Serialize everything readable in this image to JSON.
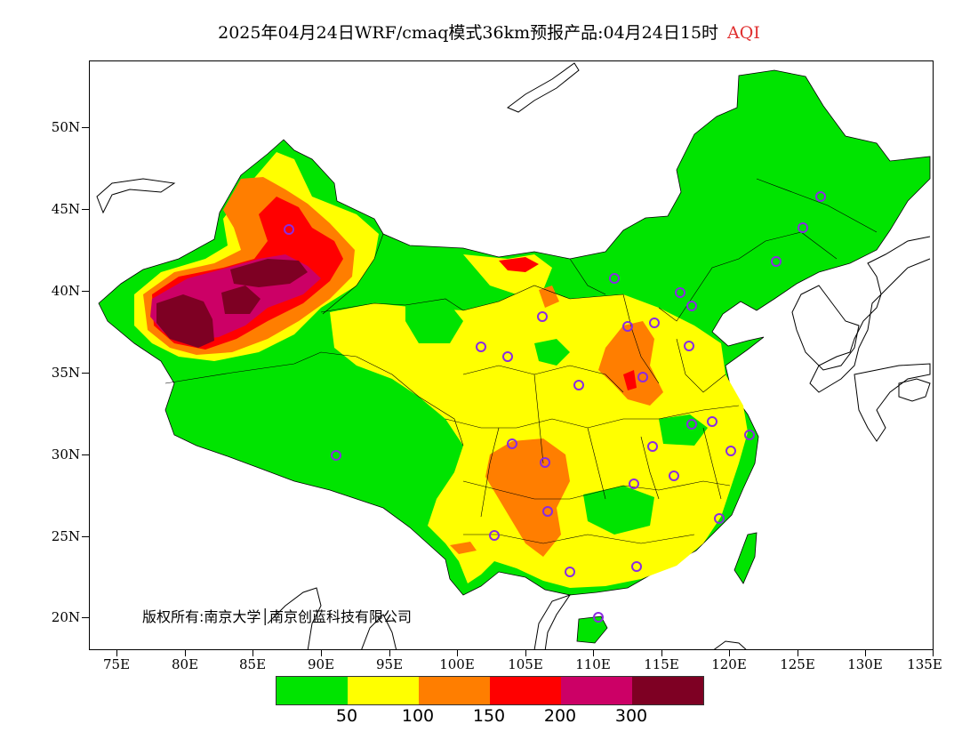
{
  "title": "2025年04月24日WRF/cmaq模式36km预报产品:04月24日15时",
  "product": "AQI",
  "copyright": "版权所有:南京大学│南京创蓝科技有限公司",
  "colors": {
    "good": "#00e400",
    "moderate": "#ffff00",
    "unhealthy_sensitive": "#ff7e00",
    "unhealthy": "#ff0000",
    "very_unhealthy": "#cc0066",
    "hazardous": "#7e0023",
    "station": "#8a2be2"
  },
  "lat_labels": [
    "50N",
    "45N",
    "40N",
    "35N",
    "30N",
    "25N",
    "20N"
  ],
  "lon_labels": [
    "75E",
    "80E",
    "85E",
    "90E",
    "95E",
    "100E",
    "105E",
    "110E",
    "115E",
    "120E",
    "125E",
    "130E",
    "135E"
  ],
  "legend": {
    "breaks": [
      "50",
      "100",
      "150",
      "200",
      "300"
    ],
    "colors": [
      "#00e400",
      "#ffff00",
      "#ff7e00",
      "#ff0000",
      "#cc0066",
      "#7e0023"
    ]
  }
}
